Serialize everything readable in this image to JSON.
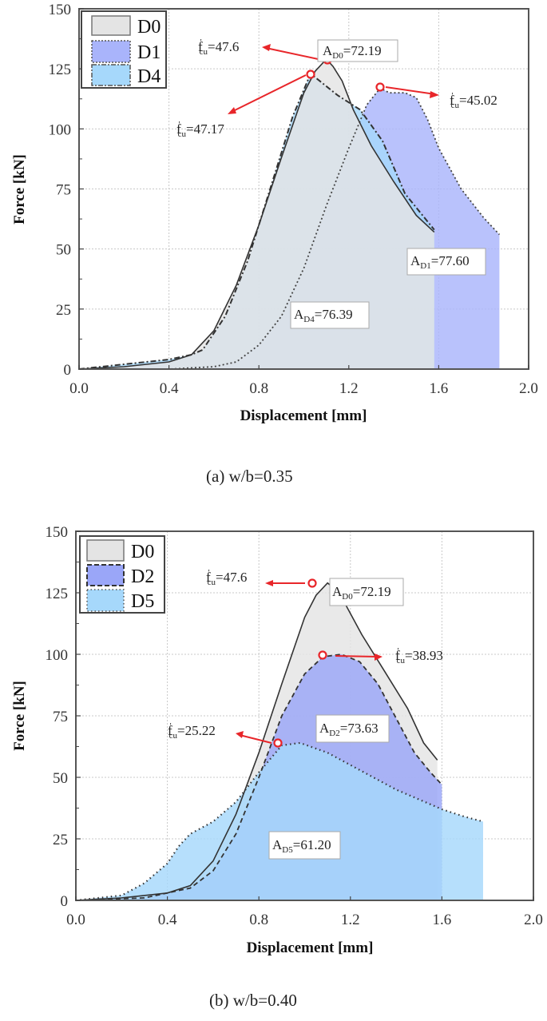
{
  "chart_data": [
    {
      "type": "area",
      "panel": "a",
      "caption": "(a) w/b=0.35",
      "xlabel": "Displacement [mm]",
      "ylabel": "Force [kN]",
      "xlim": [
        0.0,
        2.0
      ],
      "ylim": [
        0,
        150
      ],
      "xticks": [
        "0.0",
        "0.4",
        "0.8",
        "1.2",
        "1.6",
        "2.0"
      ],
      "yticks": [
        "0",
        "25",
        "50",
        "75",
        "100",
        "125",
        "150"
      ],
      "grid": true,
      "legend_position": "upper left",
      "series": [
        {
          "name": "D0",
          "fill": "#e4e4e4",
          "line": "solid",
          "x": [
            0.0,
            0.2,
            0.4,
            0.5,
            0.6,
            0.7,
            0.8,
            0.9,
            1.0,
            1.05,
            1.1,
            1.13,
            1.17,
            1.22,
            1.3,
            1.4,
            1.5,
            1.58
          ],
          "y": [
            0,
            1,
            3,
            6,
            16,
            35,
            60,
            88,
            115,
            124,
            129,
            126,
            120,
            108,
            93,
            78,
            64,
            57
          ]
        },
        {
          "name": "D1",
          "fill": "#a9b4fb",
          "line": "dotted",
          "x": [
            0.0,
            0.4,
            0.6,
            0.7,
            0.8,
            0.9,
            1.0,
            1.1,
            1.2,
            1.28,
            1.34,
            1.38,
            1.45,
            1.5,
            1.55,
            1.6,
            1.7,
            1.8,
            1.87
          ],
          "y": [
            0,
            0,
            1,
            3,
            10,
            22,
            42,
            68,
            92,
            110,
            117,
            115,
            115,
            113,
            104,
            92,
            75,
            63,
            56
          ]
        },
        {
          "name": "D4",
          "fill": "#a6d8fb",
          "line": "dash-dot",
          "x": [
            0.0,
            0.2,
            0.4,
            0.5,
            0.55,
            0.65,
            0.75,
            0.85,
            0.95,
            1.03,
            1.07,
            1.15,
            1.25,
            1.35,
            1.45,
            1.58
          ],
          "y": [
            0,
            2,
            4,
            6,
            8,
            22,
            45,
            75,
            105,
            123,
            120,
            114,
            108,
            95,
            73,
            58
          ]
        }
      ],
      "annotations": [
        {
          "text": "f'cu=47.6",
          "point": [
            1.1,
            129
          ]
        },
        {
          "text": "f'cu=47.17",
          "point": [
            1.03,
            123
          ]
        },
        {
          "text": "f'cu=45.02",
          "point": [
            1.34,
            117
          ]
        },
        {
          "text": "A_D0=72.19"
        },
        {
          "text": "A_D1=77.60"
        },
        {
          "text": "A_D4=76.39"
        }
      ]
    },
    {
      "type": "area",
      "panel": "b",
      "caption": "(b) w/b=0.40",
      "xlabel": "Displacement [mm]",
      "ylabel": "Force [kN]",
      "xlim": [
        0.0,
        2.0
      ],
      "ylim": [
        0,
        150
      ],
      "xticks": [
        "0.0",
        "0.4",
        "0.8",
        "1.2",
        "1.6",
        "2.0"
      ],
      "yticks": [
        "0",
        "25",
        "50",
        "75",
        "100",
        "125",
        "150"
      ],
      "grid": true,
      "legend_position": "upper left",
      "series": [
        {
          "name": "D0",
          "fill": "#e4e4e4",
          "line": "solid",
          "x": [
            0.0,
            0.2,
            0.4,
            0.5,
            0.6,
            0.7,
            0.8,
            0.9,
            1.0,
            1.05,
            1.1,
            1.14,
            1.18,
            1.25,
            1.35,
            1.45,
            1.52,
            1.58
          ],
          "y": [
            0,
            1,
            3,
            6,
            16,
            35,
            60,
            88,
            115,
            124,
            129,
            126,
            120,
            108,
            93,
            78,
            64,
            57
          ]
        },
        {
          "name": "D2",
          "fill": "#9aa6f8",
          "line": "dashed",
          "x": [
            0.0,
            0.3,
            0.5,
            0.6,
            0.7,
            0.8,
            0.9,
            1.0,
            1.08,
            1.16,
            1.24,
            1.32,
            1.4,
            1.48,
            1.55,
            1.6
          ],
          "y": [
            0,
            1,
            5,
            12,
            27,
            50,
            75,
            92,
            99,
            100,
            97,
            88,
            74,
            60,
            52,
            47
          ]
        },
        {
          "name": "D5",
          "fill": "#a6d8fb",
          "line": "dotted",
          "x": [
            0.0,
            0.2,
            0.3,
            0.4,
            0.45,
            0.5,
            0.6,
            0.7,
            0.8,
            0.9,
            0.98,
            1.1,
            1.2,
            1.3,
            1.4,
            1.5,
            1.6,
            1.7,
            1.78
          ],
          "y": [
            0,
            2,
            7,
            15,
            22,
            27,
            32,
            40,
            52,
            63,
            64,
            60,
            55,
            50,
            45,
            41,
            37,
            34,
            32
          ]
        }
      ],
      "annotations": [
        {
          "text": "f'cu=47.6",
          "point": [
            1.1,
            129
          ]
        },
        {
          "text": "f'cu=38.93",
          "point": [
            1.16,
            100
          ]
        },
        {
          "text": "f'cu=25.22",
          "point": [
            0.98,
            64
          ]
        },
        {
          "text": "A_D0=72.19"
        },
        {
          "text": "A_D2=73.63"
        },
        {
          "text": "A_D5=61.20"
        }
      ]
    }
  ],
  "labels": {
    "a": {
      "fcu_d0_val": "=47.6",
      "fcu_d4_val": "=47.17",
      "fcu_d1_val": "=45.02",
      "a_d0_sub": "D0",
      "a_d0_val": "=72.19",
      "a_d1_sub": "D1",
      "a_d1_val": "=77.60",
      "a_d4_sub": "D4",
      "a_d4_val": "=76.39"
    },
    "b": {
      "fcu_d0_val": "=47.6",
      "fcu_d2_val": "=38.93",
      "fcu_d5_val": "=25.22",
      "a_d0_sub": "D0",
      "a_d0_val": "=72.19",
      "a_d2_sub": "D2",
      "a_d2_val": "=73.63",
      "a_d5_sub": "D5",
      "a_d5_val": "=61.20"
    },
    "f_main": "f",
    "f_prime": "'",
    "f_sub": "cu",
    "a_main": "A"
  }
}
